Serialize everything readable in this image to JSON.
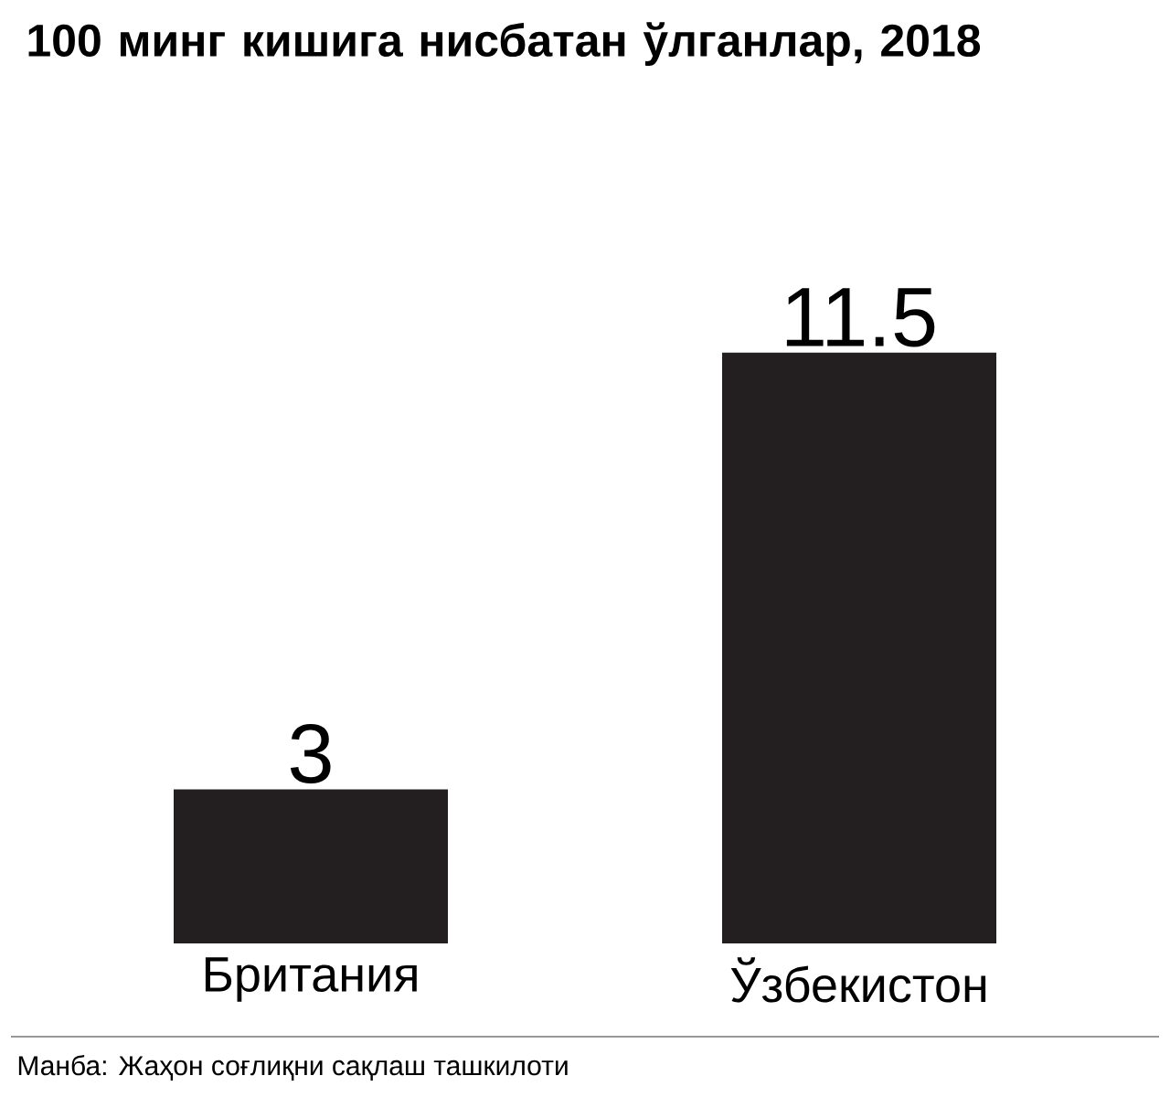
{
  "chart_data": {
    "type": "bar",
    "title": "100 минг кишига нисбатан ўлганлар, 2018",
    "categories": [
      "Британия",
      "Ўзбекистон"
    ],
    "values": [
      3,
      11.5
    ],
    "color": "#231f20",
    "data_labels": true,
    "annotations": [
      "Манба: Жаҳон соғлиқни сақлаш ташкилоти"
    ]
  }
}
